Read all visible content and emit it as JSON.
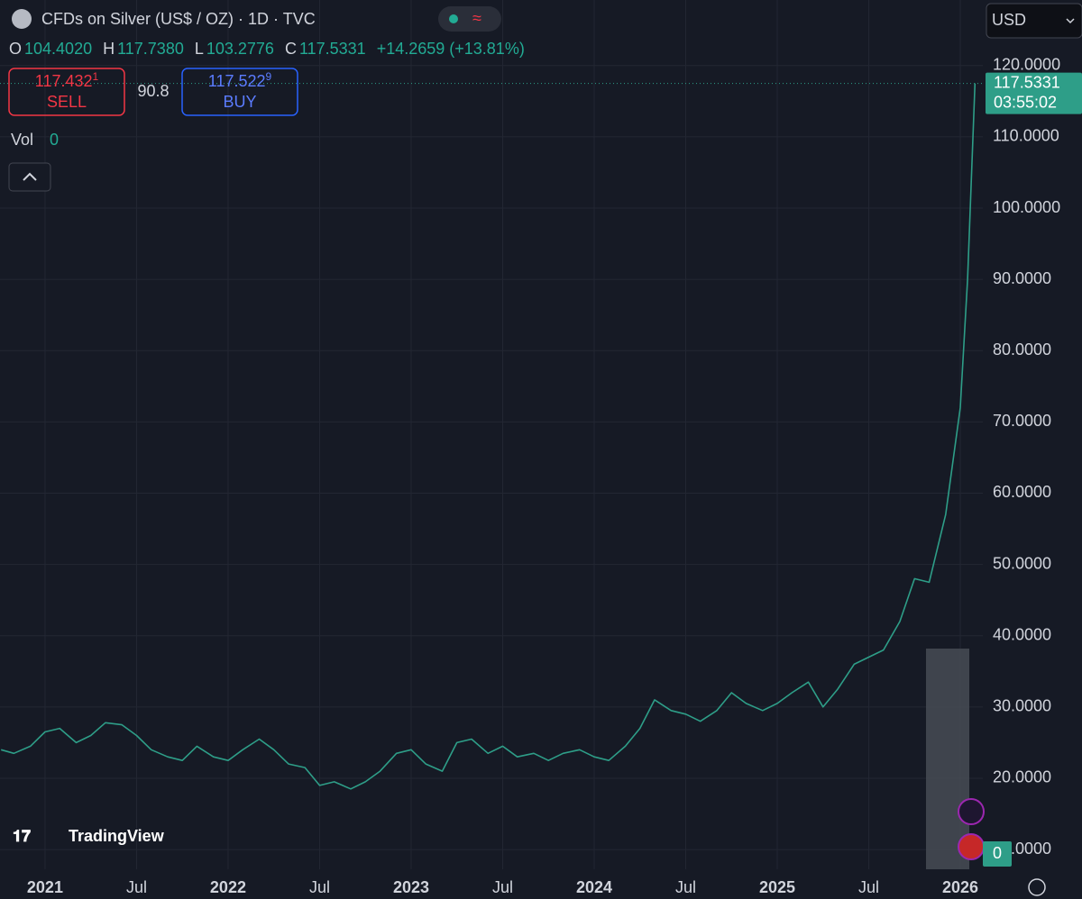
{
  "header": {
    "title": "CFDs on Silver (US$ / OZ) · 1D · TVC",
    "open_label": "O",
    "open": "104.4020",
    "high_label": "H",
    "high": "117.7380",
    "low_label": "L",
    "low": "103.2776",
    "close_label": "C",
    "close": "117.5331",
    "change": "+14.2659 (+13.81%)"
  },
  "trade": {
    "sell_price": "117.432",
    "sell_pip": "1",
    "sell_label": "SELL",
    "spread": "90.8",
    "buy_price": "117.522",
    "buy_pip": "9",
    "buy_label": "BUY"
  },
  "volume": {
    "label": "Vol",
    "value": "0"
  },
  "currency": "USD",
  "last_price": {
    "price": "117.5331",
    "countdown": "03:55:02"
  },
  "volume_badge": "0",
  "watermark": "TradingView",
  "chart_data": {
    "type": "line",
    "color": "#2e9e88",
    "x": [
      2020.76,
      2020.83,
      2020.92,
      2021.0,
      2021.08,
      2021.17,
      2021.25,
      2021.33,
      2021.42,
      2021.5,
      2021.58,
      2021.67,
      2021.75,
      2021.83,
      2021.92,
      2022.0,
      2022.08,
      2022.17,
      2022.25,
      2022.33,
      2022.42,
      2022.5,
      2022.58,
      2022.67,
      2022.75,
      2022.83,
      2022.92,
      2023.0,
      2023.08,
      2023.17,
      2023.25,
      2023.33,
      2023.42,
      2023.5,
      2023.58,
      2023.67,
      2023.75,
      2023.83,
      2023.92,
      2024.0,
      2024.08,
      2024.17,
      2024.25,
      2024.33,
      2024.42,
      2024.5,
      2024.58,
      2024.67,
      2024.75,
      2024.83,
      2024.92,
      2025.0,
      2025.08,
      2025.17,
      2025.25,
      2025.33,
      2025.42,
      2025.5,
      2025.58,
      2025.67,
      2025.75,
      2025.83,
      2025.92,
      2026.0,
      2026.04,
      2026.08
    ],
    "values": [
      24,
      23.5,
      24.5,
      26.5,
      27,
      25,
      26,
      27.8,
      27.5,
      26,
      24,
      23,
      22.5,
      24.5,
      23,
      22.5,
      24,
      25.5,
      24,
      22,
      21.5,
      19,
      19.5,
      18.5,
      19.5,
      21,
      23.5,
      24,
      22,
      21,
      25,
      25.5,
      23.5,
      24.5,
      23,
      23.5,
      22.5,
      23.5,
      24,
      23,
      22.5,
      24.5,
      27,
      31,
      29.5,
      29,
      28,
      29.5,
      32,
      30.5,
      29.5,
      30.5,
      32,
      33.5,
      30,
      32.5,
      36,
      37,
      38,
      42,
      48,
      47.5,
      57,
      72,
      90,
      117.5
    ],
    "xlim": [
      2020.754,
      2026.123
    ],
    "xticks": [
      2021,
      {
        "value": 2021.5,
        "label": "Jul"
      },
      2022,
      {
        "value": 2022.5,
        "label": "Jul"
      },
      2023,
      {
        "value": 2023.5,
        "label": "Jul"
      },
      2024,
      {
        "value": 2024.5,
        "label": "Jul"
      },
      2025,
      {
        "value": 2025.5,
        "label": "Jul"
      },
      2026
    ],
    "ylim": [
      7.23,
      129.2
    ],
    "yticks": [
      {
        "value": 120,
        "label": "120.0000"
      },
      {
        "value": 110,
        "label": "110.0000"
      },
      {
        "value": 100,
        "label": "100.0000"
      },
      {
        "value": 90,
        "label": "90.0000"
      },
      {
        "value": 80,
        "label": "80.0000"
      },
      {
        "value": 70,
        "label": "70.0000"
      },
      {
        "value": 60,
        "label": "60.0000"
      },
      {
        "value": 50,
        "label": "50.0000"
      },
      {
        "value": 40,
        "label": "40.0000"
      },
      {
        "value": 30,
        "label": "30.0000"
      },
      {
        "value": 20,
        "label": "20.0000"
      },
      {
        "value": 10,
        "label": "10.0000"
      }
    ],
    "grid": true
  }
}
